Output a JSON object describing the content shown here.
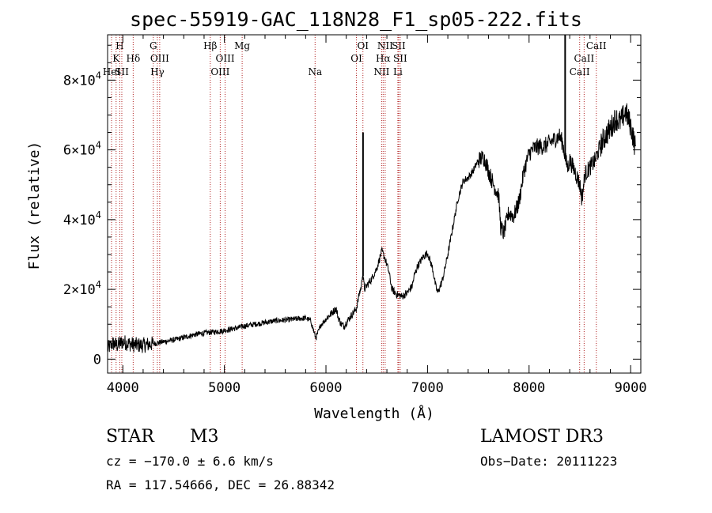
{
  "chart_data": {
    "type": "line",
    "title": "spec-55919-GAC_118N28_F1_sp05-222.fits",
    "xlabel": "Wavelength (Å)",
    "ylabel": "Flux (relative)",
    "xlim": [
      3850,
      9100
    ],
    "ylim": [
      -4000,
      93000
    ],
    "xticks": [
      4000,
      5000,
      6000,
      7000,
      8000,
      9000
    ],
    "xtick_labels": [
      "4000",
      "5000",
      "6000",
      "7000",
      "8000",
      "9000"
    ],
    "yticks": [
      0,
      20000,
      40000,
      60000,
      80000
    ],
    "ytick_labels": [
      {
        "mant": "0",
        "exp": ""
      },
      {
        "mant": "2×10",
        "exp": "4"
      },
      {
        "mant": "4×10",
        "exp": "4"
      },
      {
        "mant": "6×10",
        "exp": "4"
      },
      {
        "mant": "8×10",
        "exp": "4"
      }
    ],
    "series": [
      {
        "name": "spectrum",
        "x": [
          3850,
          3900,
          3950,
          4000,
          4050,
          4100,
          4150,
          4200,
          4250,
          4300,
          4400,
          4500,
          4600,
          4700,
          4800,
          4900,
          5000,
          5100,
          5200,
          5300,
          5400,
          5500,
          5600,
          5700,
          5800,
          5850,
          5880,
          5900,
          5920,
          5950,
          6000,
          6050,
          6100,
          6120,
          6150,
          6180,
          6200,
          6250,
          6300,
          6330,
          6350,
          6360,
          6380,
          6400,
          6450,
          6500,
          6550,
          6580,
          6600,
          6620,
          6650,
          6700,
          6750,
          6800,
          6850,
          6870,
          6900,
          6950,
          7000,
          7050,
          7080,
          7100,
          7120,
          7150,
          7200,
          7250,
          7300,
          7350,
          7400,
          7450,
          7500,
          7550,
          7580,
          7600,
          7650,
          7700,
          7720,
          7750,
          7800,
          7850,
          7900,
          7950,
          8000,
          8050,
          8100,
          8150,
          8200,
          8250,
          8300,
          8330,
          8350,
          8360,
          8380,
          8400,
          8450,
          8500,
          8520,
          8550,
          8600,
          8650,
          8700,
          8750,
          8800,
          8850,
          8900,
          8950,
          9000,
          9030,
          9050
        ],
        "y": [
          3000,
          4500,
          4000,
          5000,
          4500,
          4200,
          4000,
          4000,
          4200,
          4400,
          5000,
          5500,
          6200,
          7000,
          7500,
          7800,
          8200,
          8800,
          9500,
          10000,
          10500,
          11000,
          11200,
          11500,
          11800,
          11000,
          8000,
          6000,
          7500,
          9800,
          11500,
          13000,
          14500,
          12000,
          10000,
          9500,
          10500,
          12500,
          14500,
          19000,
          21000,
          25000,
          20000,
          21000,
          23000,
          26000,
          31000,
          29000,
          27000,
          25000,
          20000,
          18500,
          18000,
          19000,
          21000,
          24000,
          26500,
          29000,
          30500,
          26000,
          21000,
          19000,
          20500,
          23000,
          30000,
          38000,
          46000,
          51000,
          52000,
          54000,
          57000,
          58000,
          56000,
          54000,
          50000,
          47000,
          38000,
          36000,
          42000,
          41000,
          45000,
          54000,
          59000,
          60500,
          61000,
          61000,
          62000,
          63000,
          64000,
          62000,
          59000,
          57000,
          55000,
          57000,
          54000,
          50000,
          46000,
          53000,
          55000,
          57000,
          61000,
          64000,
          66000,
          69000,
          68000,
          71000,
          67000,
          63000,
          60000
        ]
      }
    ],
    "spikes": [
      {
        "x": 6365,
        "ymax": 65000,
        "label": "emission spike near 6365 Å"
      },
      {
        "x": 8355,
        "ymax": 93000,
        "label": "spike near 8355 Å"
      }
    ]
  },
  "line_markers": [
    {
      "x": 3889,
      "label": "HeI",
      "row": 3
    },
    {
      "x": 3934,
      "label": "K",
      "row": 2
    },
    {
      "x": 3970,
      "label": "H",
      "row": 1
    },
    {
      "x": 3990,
      "label": "SII",
      "row": 3
    },
    {
      "x": 4102,
      "label": "Hδ",
      "row": 2
    },
    {
      "x": 4300,
      "label": "G",
      "row": 1
    },
    {
      "x": 4340,
      "label": "Hγ",
      "row": 3
    },
    {
      "x": 4363,
      "label": "OIII",
      "row": 2
    },
    {
      "x": 4861,
      "label": "Hβ",
      "row": 1
    },
    {
      "x": 4959,
      "label": "OIII",
      "row": 3
    },
    {
      "x": 5007,
      "label": "OIII",
      "row": 2
    },
    {
      "x": 5175,
      "label": "Mg",
      "row": 1
    },
    {
      "x": 5893,
      "label": "Na",
      "row": 3
    },
    {
      "x": 6300,
      "label": "OI",
      "row": 2
    },
    {
      "x": 6364,
      "label": "OI",
      "row": 1
    },
    {
      "x": 6548,
      "label": "NII",
      "row": 3
    },
    {
      "x": 6563,
      "label": "Hα",
      "row": 2
    },
    {
      "x": 6583,
      "label": "NII",
      "row": 1
    },
    {
      "x": 6708,
      "label": "Li",
      "row": 3
    },
    {
      "x": 6716,
      "label": "SII",
      "row": 1
    },
    {
      "x": 6731,
      "label": "SII",
      "row": 2
    },
    {
      "x": 8498,
      "label": "CaII",
      "row": 3
    },
    {
      "x": 8542,
      "label": "CaII",
      "row": 2
    },
    {
      "x": 8662,
      "label": "CaII",
      "row": 1
    }
  ],
  "footer": {
    "object_class": "STAR",
    "subclass": "M3",
    "survey": "LAMOST DR3",
    "redshift": "cz = −170.0 ± 6.6 km/s",
    "obs_date": "Obs−Date: 20111223",
    "coords": "RA = 117.54666, DEC =  26.88342"
  },
  "colors": {
    "spectrum": "#000000",
    "marker_lines": "#b22222",
    "axes": "#000000",
    "background": "#ffffff"
  }
}
